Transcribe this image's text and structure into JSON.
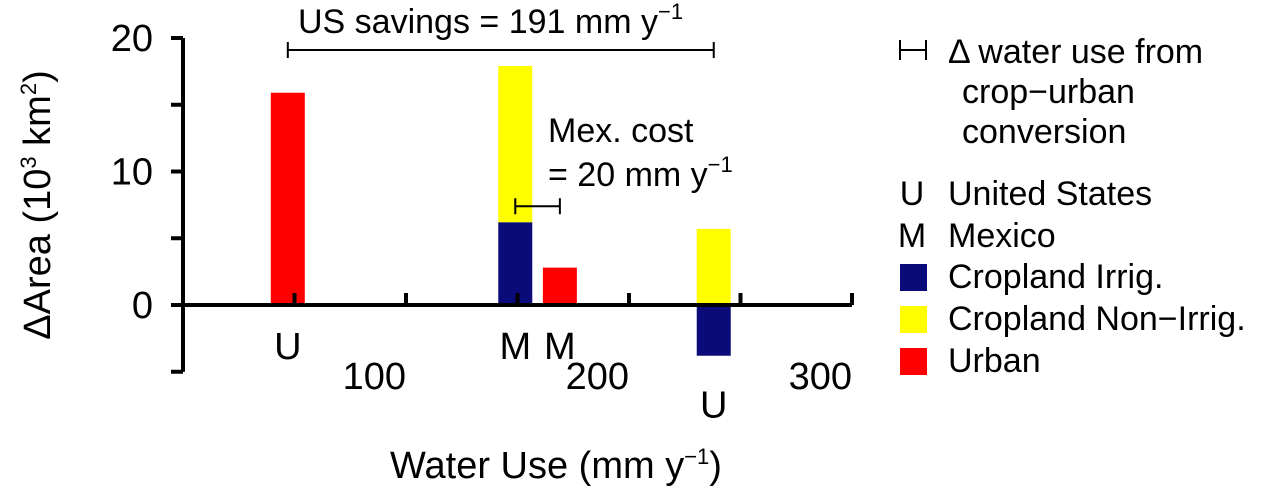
{
  "chart_data": {
    "type": "bar",
    "xlabel": "Water Use (mm y",
    "xlabel_sup": "−1",
    "xlabel_end": ")",
    "ylabel": "ΔArea (10",
    "ylabel_sup": "3",
    "ylabel_mid": " km",
    "ylabel_sup2": "2",
    "ylabel_end": ")",
    "xlim": [
      0,
      300
    ],
    "ylim": [
      -5,
      20
    ],
    "x_ticks": [
      {
        "value": 100,
        "label": "100"
      },
      {
        "value": 200,
        "label": "200"
      },
      {
        "value": 300,
        "label": "300"
      }
    ],
    "y_ticks": [
      {
        "value": 0,
        "label": "0"
      },
      {
        "value": 10,
        "label": "10"
      },
      {
        "value": 20,
        "label": "20"
      }
    ],
    "bars": [
      {
        "x": 47,
        "country": "U",
        "label_pos": "below",
        "segments": [
          {
            "type": "urban",
            "from": 0,
            "to": 15.9
          }
        ]
      },
      {
        "x": 149,
        "country": "M",
        "label_pos": "below",
        "segments": [
          {
            "type": "irrig",
            "from": 0,
            "to": 6.2
          },
          {
            "type": "nonirrig",
            "from": 6.2,
            "to": 17.9
          }
        ]
      },
      {
        "x": 169,
        "country": "M",
        "label_pos": "below",
        "segments": [
          {
            "type": "urban",
            "from": 0,
            "to": 2.8
          }
        ]
      },
      {
        "x": 238,
        "country": "U",
        "label_pos": "below-negative",
        "segments": [
          {
            "type": "nonirrig",
            "from": 0,
            "to": 5.7
          },
          {
            "type": "irrig",
            "from": -3.8,
            "to": 0
          }
        ]
      }
    ],
    "colors": {
      "irrig": "#0a0a78",
      "nonirrig": "#ffff00",
      "urban": "#ff0000"
    },
    "annotations": {
      "us_savings": {
        "text": "US savings = 191 mm y",
        "sup": "−1",
        "x_from": 47,
        "x_to": 238,
        "y": 19.1
      },
      "mex_cost": {
        "line1": "Mex. cost",
        "line2": "= 20 mm y",
        "sup": "−1",
        "x_from": 149,
        "x_to": 169,
        "y": 7.4
      }
    },
    "legend": {
      "placement": "right",
      "bracket_text": [
        "Δ water use from",
        "crop−urban",
        "conversion"
      ],
      "countries": [
        {
          "symbol": "U",
          "label": "United States"
        },
        {
          "symbol": "M",
          "label": "Mexico"
        }
      ],
      "series": [
        {
          "key": "irrig",
          "label": "Cropland Irrig."
        },
        {
          "key": "nonirrig",
          "label": "Cropland Non−Irrig."
        },
        {
          "key": "urban",
          "label": "Urban"
        }
      ]
    }
  }
}
